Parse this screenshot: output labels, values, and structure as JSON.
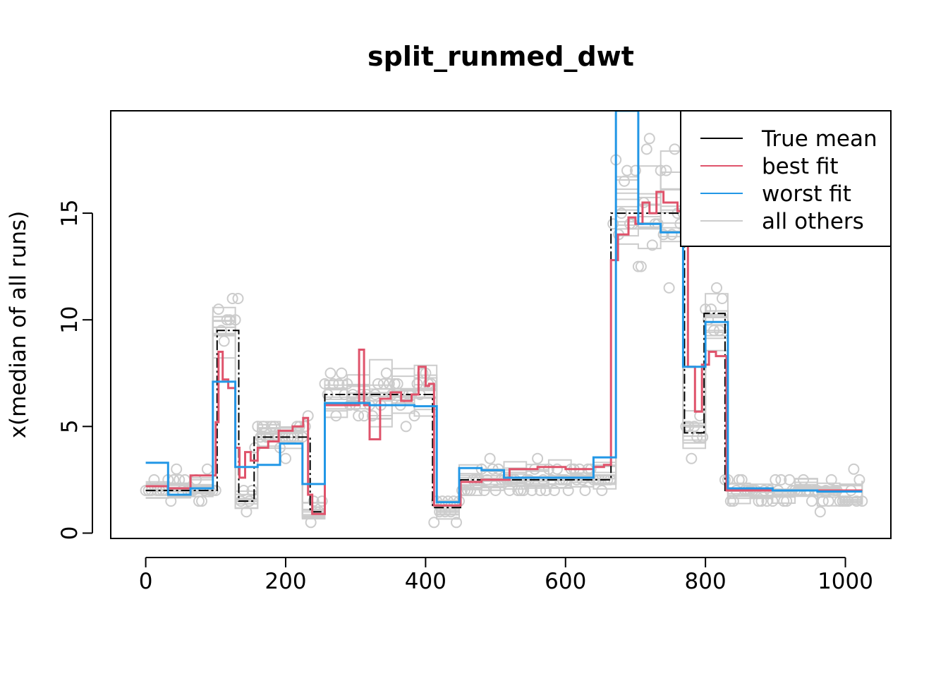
{
  "chart_data": {
    "type": "line",
    "title": "split_runmed_dwt",
    "xlabel": "",
    "ylabel": "x(median of all runs)",
    "xlim": [
      -50,
      1065
    ],
    "ylim": [
      -0.25,
      19.8
    ],
    "x_ticks": [
      0,
      200,
      400,
      600,
      800,
      1000
    ],
    "y_ticks": [
      0,
      5,
      10,
      15
    ],
    "grid": false,
    "legend_position": "top-right",
    "colors": {
      "true_mean": "#000000",
      "best_fit": "#DF536B",
      "worst_fit": "#2297E6",
      "all_others": "#CCCCCC",
      "observations": "#CCCCCC"
    },
    "legend": [
      {
        "key": "true_mean",
        "label": "True mean"
      },
      {
        "key": "best_fit",
        "label": "best fit"
      },
      {
        "key": "worst_fit",
        "label": "worst fit"
      },
      {
        "key": "all_others",
        "label": "all others"
      }
    ],
    "series": [
      {
        "name": "True mean",
        "key": "true_mean",
        "x": [
          0,
          102,
          102,
          133,
          133,
          155,
          155,
          235,
          235,
          256,
          256,
          410,
          410,
          450,
          450,
          665,
          665,
          770,
          770,
          798,
          798,
          828,
          828,
          1024
        ],
        "values": [
          2.0,
          2.0,
          9.5,
          9.5,
          1.5,
          1.5,
          4.5,
          4.5,
          1.0,
          1.0,
          6.5,
          6.5,
          1.2,
          1.2,
          2.5,
          2.5,
          15.0,
          15.0,
          4.7,
          4.7,
          10.3,
          10.3,
          2.0,
          2.0
        ]
      },
      {
        "name": "best fit",
        "key": "best_fit",
        "x": [
          0,
          32,
          64,
          96,
          100,
          104,
          110,
          118,
          128,
          134,
          142,
          150,
          160,
          175,
          190,
          210,
          225,
          232,
          238,
          256,
          300,
          305,
          312,
          320,
          335,
          350,
          365,
          380,
          390,
          400,
          405,
          412,
          450,
          480,
          520,
          560,
          600,
          640,
          655,
          665,
          675,
          690,
          700,
          710,
          720,
          730,
          740,
          760,
          775,
          785,
          795,
          805,
          815,
          830,
          900,
          1024
        ],
        "values": [
          2.2,
          2.1,
          2.7,
          2.7,
          5.2,
          8.5,
          7.2,
          6.8,
          4.0,
          2.6,
          3.8,
          3.4,
          4.0,
          4.3,
          4.8,
          5.0,
          5.4,
          1.8,
          0.9,
          6.0,
          6.0,
          8.6,
          6.0,
          4.4,
          6.3,
          6.6,
          6.2,
          6.5,
          7.8,
          6.9,
          7.0,
          1.3,
          2.4,
          2.5,
          3.0,
          3.1,
          3.0,
          3.1,
          3.2,
          12.8,
          14.0,
          14.8,
          14.5,
          15.5,
          15.0,
          16.0,
          15.5,
          15.1,
          7.8,
          5.7,
          7.9,
          8.5,
          8.3,
          2.0,
          2.0,
          2.0
        ]
      },
      {
        "name": "worst fit",
        "key": "worst_fit",
        "x": [
          0,
          32,
          64,
          96,
          128,
          160,
          192,
          224,
          256,
          320,
          384,
          416,
          448,
          480,
          512,
          544,
          576,
          608,
          640,
          672,
          704,
          736,
          768,
          800,
          832,
          896,
          960,
          1024
        ],
        "values": [
          3.3,
          1.8,
          2.1,
          7.1,
          3.1,
          3.2,
          4.2,
          2.3,
          6.1,
          6.0,
          5.95,
          1.45,
          3.05,
          2.95,
          2.6,
          2.6,
          2.6,
          2.6,
          3.55,
          19.8,
          14.5,
          14.1,
          7.8,
          9.9,
          2.1,
          2.0,
          1.95,
          1.95
        ]
      }
    ],
    "observations_note": "grey circles: individual noisy data points, scattered around the true mean"
  }
}
